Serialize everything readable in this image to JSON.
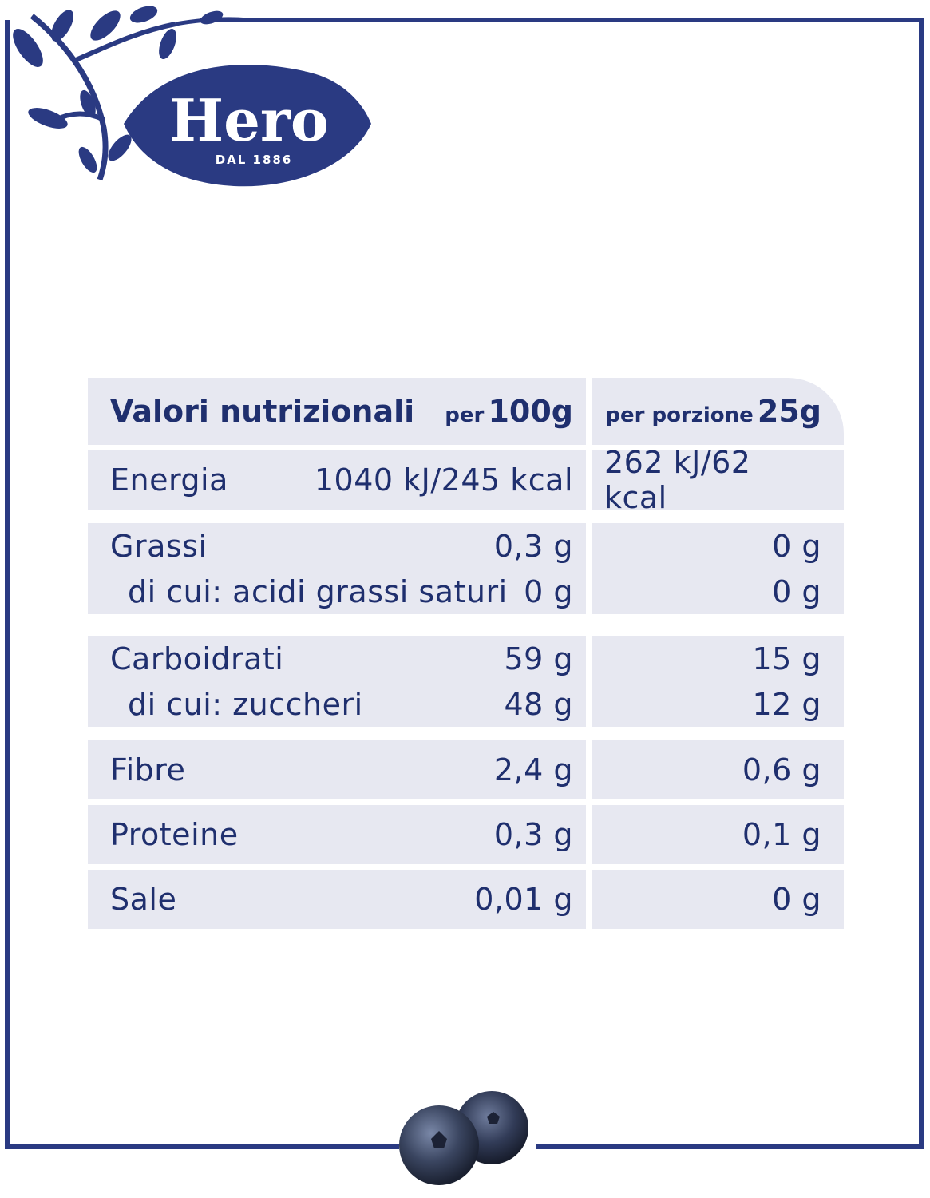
{
  "brand": {
    "logo_text": "Hero",
    "tagline": "DAL 1886"
  },
  "table": {
    "header": {
      "title": "Valori nutrizionali",
      "col1_prefix": "per",
      "col1_amount": "100g",
      "col2_prefix": "per porzione",
      "col2_amount": "25g"
    },
    "rows": [
      {
        "label": "Energia",
        "per100": "1040 kJ/245 kcal",
        "perServing": "262 kJ/62 kcal"
      },
      {
        "label": "Grassi",
        "per100": "0,3 g",
        "perServing": "0 g",
        "sub_label": "di cui: acidi grassi saturi",
        "sub_per100": "0 g",
        "sub_perServing": "0 g"
      },
      {
        "label": "Carboidrati",
        "per100": "59 g",
        "perServing": "15 g",
        "sub_label": "di cui: zuccheri",
        "sub_per100": "48 g",
        "sub_perServing": "12 g"
      },
      {
        "label": "Fibre",
        "per100": "2,4 g",
        "perServing": "0,6 g"
      },
      {
        "label": "Proteine",
        "per100": "0,3 g",
        "perServing": "0,1 g"
      },
      {
        "label": "Sale",
        "per100": "0,01 g",
        "perServing": "0 g"
      }
    ]
  },
  "colors": {
    "brand_blue": "#2a3a82",
    "text": "#1f2f6e",
    "cell_bg": "#e7e8f1"
  }
}
